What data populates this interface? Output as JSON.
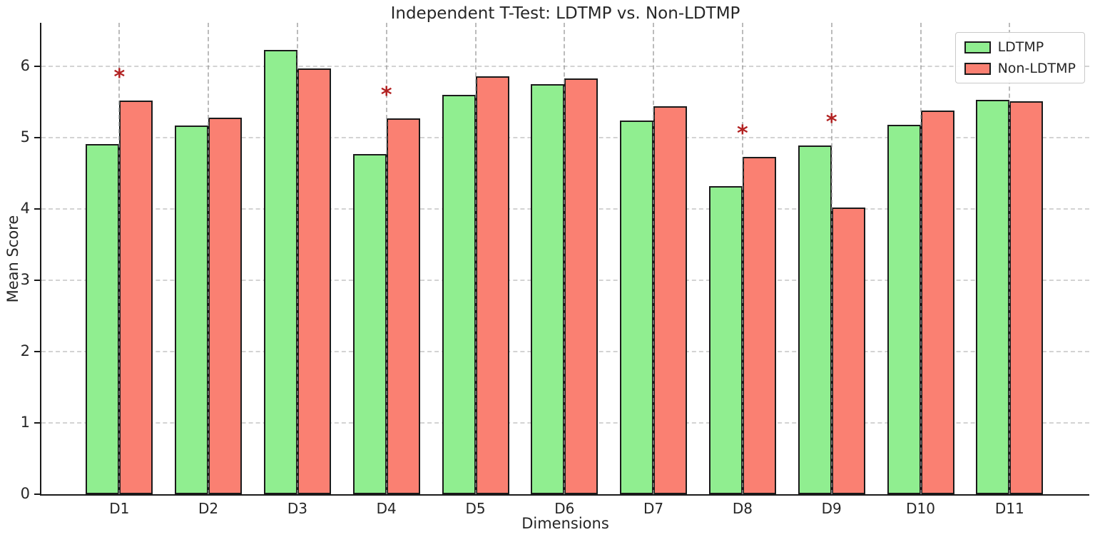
{
  "chart_data": {
    "type": "bar",
    "title": "Independent T-Test: LDTMP vs. Non-LDTMP",
    "xlabel": "Dimensions",
    "ylabel": "Mean Score",
    "categories": [
      "D1",
      "D2",
      "D3",
      "D4",
      "D5",
      "D6",
      "D7",
      "D8",
      "D9",
      "D10",
      "D11"
    ],
    "series": [
      {
        "name": "LDTMP",
        "color": "#90EE90",
        "values": [
          4.91,
          5.17,
          6.23,
          4.77,
          5.6,
          5.75,
          5.24,
          4.32,
          4.89,
          5.18,
          5.53
        ]
      },
      {
        "name": "Non-LDTMP",
        "color": "#FA8072",
        "values": [
          5.52,
          5.28,
          5.97,
          5.27,
          5.86,
          5.83,
          5.44,
          4.73,
          4.02,
          5.38,
          5.51
        ]
      }
    ],
    "significance": {
      "marker": "*",
      "color": "#B22222",
      "categories": [
        "D1",
        "D4",
        "D8",
        "D9"
      ],
      "offset_above_max_bar": 0.32
    },
    "ylim": [
      0,
      6.61
    ],
    "yticks": [
      0,
      1,
      2,
      3,
      4,
      5,
      6
    ],
    "grid": true,
    "grid_style": "dashed",
    "legend_position": "top-right",
    "bar_edge_color": "#1a1a1a"
  }
}
